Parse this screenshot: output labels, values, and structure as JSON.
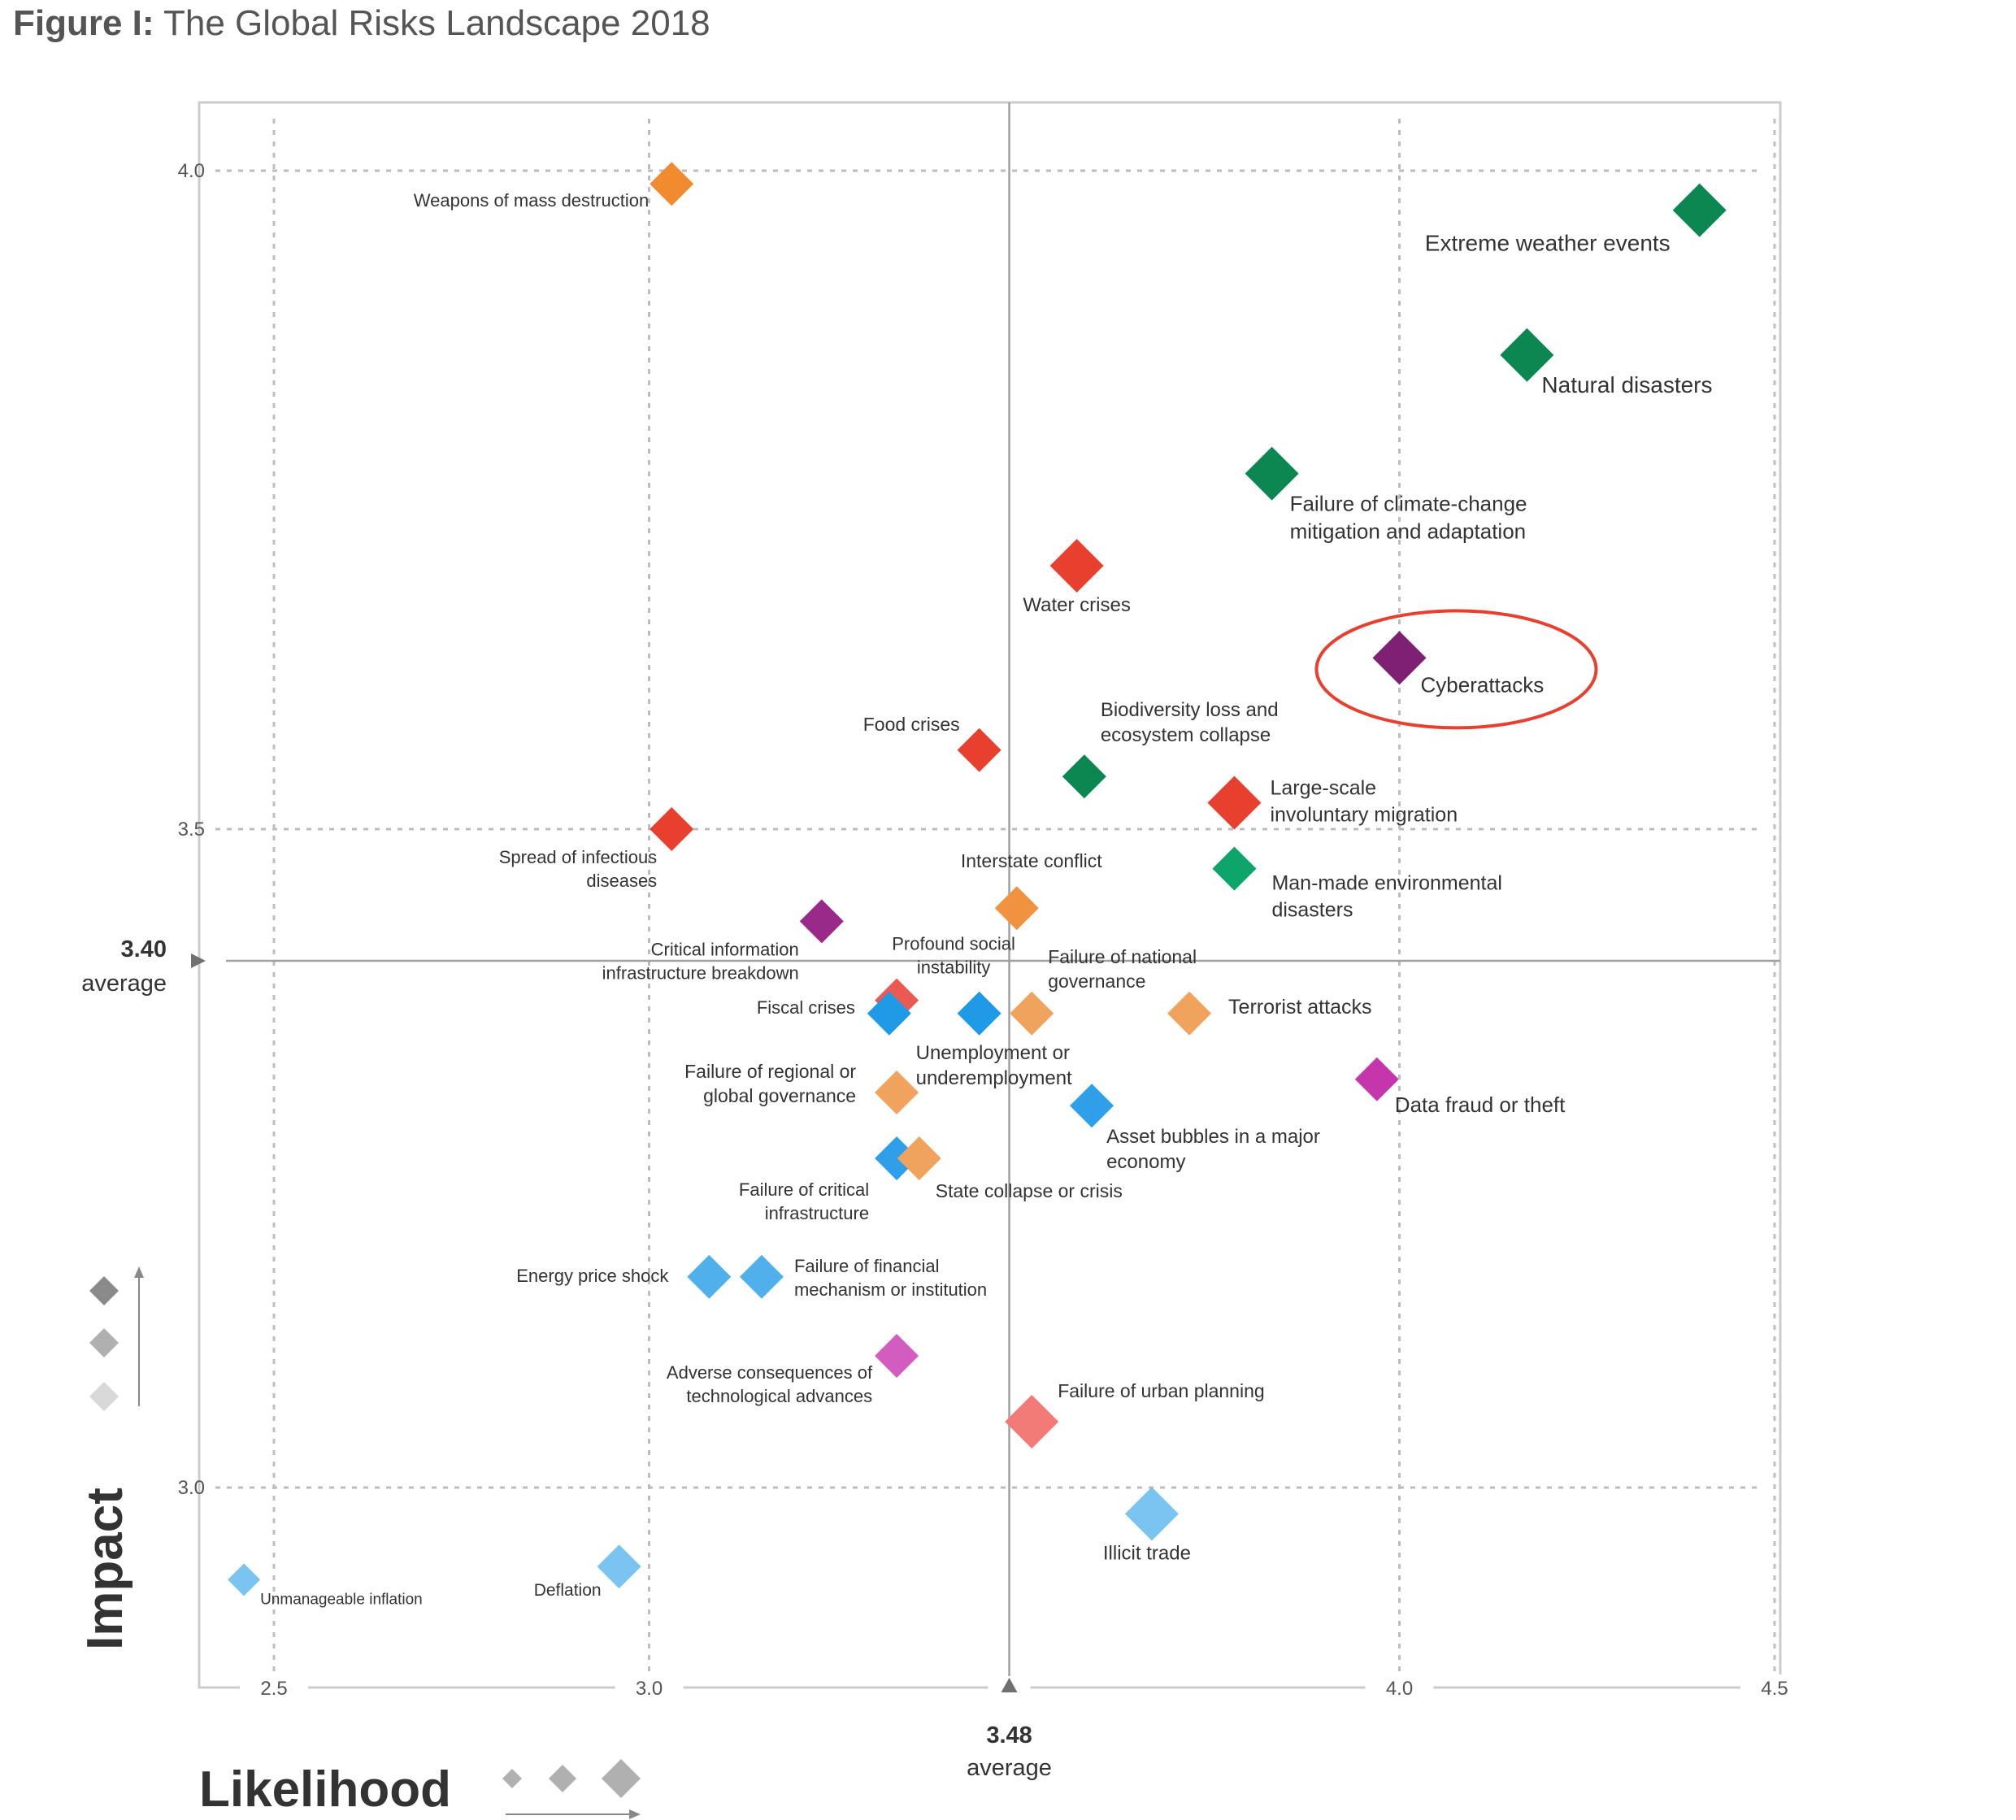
{
  "title": {
    "prefix": "Figure I:",
    "text": "The Global Risks Landscape 2018"
  },
  "chart_data": {
    "type": "scatter",
    "title": "The Global Risks Landscape 2018",
    "xlabel": "Likelihood",
    "ylabel": "Impact",
    "xlim": [
      2.4,
      4.5
    ],
    "ylim": [
      2.85,
      4.05
    ],
    "x_ticks": [
      "2.5",
      "3.0",
      "4.0",
      "4.5"
    ],
    "y_ticks": [
      "3.0",
      "3.5",
      "4.0"
    ],
    "average": {
      "x_value": 3.48,
      "x_label": "3.48",
      "x_caption": "average",
      "y_value": 3.4,
      "y_label": "3.40",
      "y_caption": "average"
    },
    "points": [
      {
        "label": "Weapons of mass destruction",
        "x": 3.03,
        "y": 3.99,
        "color": "#f28b30",
        "size": 2,
        "lines": [
          "Weapons of mass destruction"
        ],
        "anchor": "end",
        "dx": -28,
        "dy": 28,
        "fs": 22
      },
      {
        "label": "Extreme weather events",
        "x": 4.4,
        "y": 3.97,
        "color": "#0c8752",
        "size": 3,
        "lines": [
          "Extreme weather events"
        ],
        "anchor": "end",
        "dx": -36,
        "dy": 50,
        "fs": 28
      },
      {
        "label": "Natural disasters",
        "x": 4.17,
        "y": 3.86,
        "color": "#0c8752",
        "size": 3,
        "lines": [
          "Natural disasters"
        ],
        "anchor": "start",
        "dx": 18,
        "dy": 46,
        "fs": 28
      },
      {
        "label": "Failure of climate-change mitigation and adaptation",
        "x": 3.83,
        "y": 3.77,
        "color": "#0c8752",
        "size": 3,
        "lines": [
          "Failure of climate-change",
          "mitigation and adaptation"
        ],
        "anchor": "start",
        "dx": 22,
        "dy": 46,
        "fs": 26
      },
      {
        "label": "Water crises",
        "x": 3.57,
        "y": 3.7,
        "color": "#e8402f",
        "size": 3,
        "lines": [
          "Water crises"
        ],
        "anchor": "middle",
        "dx": 0,
        "dy": 56,
        "fs": 24
      },
      {
        "label": "Cyberattacks",
        "x": 4.0,
        "y": 3.63,
        "color": "#7e2073",
        "size": 3,
        "lines": [
          "Cyberattacks"
        ],
        "anchor": "start",
        "dx": 26,
        "dy": 42,
        "fs": 26
      },
      {
        "label": "Food crises",
        "x": 3.44,
        "y": 3.56,
        "color": "#e8402f",
        "size": 2,
        "lines": [
          "Food crises"
        ],
        "anchor": "end",
        "dx": -24,
        "dy": -24,
        "fs": 23
      },
      {
        "label": "Biodiversity loss and ecosystem collapse",
        "x": 3.58,
        "y": 3.54,
        "color": "#0c8752",
        "size": 2,
        "lines": [
          "Biodiversity loss and",
          "ecosystem collapse"
        ],
        "anchor": "start",
        "dx": 20,
        "dy": -74,
        "fs": 24
      },
      {
        "label": "Large-scale involuntary migration",
        "x": 3.78,
        "y": 3.52,
        "color": "#e8402f",
        "size": 3,
        "lines": [
          "Large-scale",
          "involuntary migration"
        ],
        "anchor": "start",
        "dx": 44,
        "dy": -10,
        "fs": 25
      },
      {
        "label": "Spread of infectious diseases",
        "x": 3.03,
        "y": 3.5,
        "color": "#e8402f",
        "size": 2,
        "lines": [
          "Spread of infectious",
          "diseases"
        ],
        "anchor": "end",
        "dx": -18,
        "dy": 42,
        "fs": 22
      },
      {
        "label": "Man-made environmental disasters",
        "x": 3.78,
        "y": 3.47,
        "color": "#0da56a",
        "size": 2,
        "lines": [
          "Man-made environmental",
          "disasters"
        ],
        "anchor": "start",
        "dx": 46,
        "dy": 26,
        "fs": 25
      },
      {
        "label": "Interstate conflict",
        "x": 3.49,
        "y": 3.44,
        "color": "#f0923f",
        "size": 2,
        "lines": [
          "Interstate conflict"
        ],
        "anchor": "middle",
        "dx": 18,
        "dy": -50,
        "fs": 23
      },
      {
        "label": "Critical information infrastructure breakdown",
        "x": 3.23,
        "y": 3.43,
        "color": "#9a2a8a",
        "size": 2,
        "lines": [
          "Critical information",
          "infrastructure breakdown"
        ],
        "anchor": "end",
        "dx": -28,
        "dy": 42,
        "fs": 22
      },
      {
        "label": "Profound social instability",
        "x": 3.33,
        "y": 3.37,
        "color": "#ea5a52",
        "size": 2,
        "lines": [
          "Profound social",
          "instability"
        ],
        "anchor": "middle",
        "dx": 70,
        "dy": -62,
        "fs": 22
      },
      {
        "label": "Fiscal crises",
        "x": 3.32,
        "y": 3.36,
        "color": "#1f9ae6",
        "size": 2,
        "lines": [
          "Fiscal crises"
        ],
        "anchor": "end",
        "dx": -42,
        "dy": 0,
        "fs": 22
      },
      {
        "label": "Unemployment or underemployment",
        "x": 3.44,
        "y": 3.36,
        "color": "#1f9ae6",
        "size": 2,
        "lines": [
          "Unemployment or",
          "underemployment"
        ],
        "anchor": "start",
        "dx": -78,
        "dy": 56,
        "fs": 24
      },
      {
        "label": "Failure of national governance",
        "x": 3.51,
        "y": 3.36,
        "color": "#f0a35d",
        "size": 2,
        "lines": [
          "Failure of national",
          "governance"
        ],
        "anchor": "start",
        "dx": 20,
        "dy": -62,
        "fs": 23
      },
      {
        "label": "Terrorist attacks",
        "x": 3.72,
        "y": 3.36,
        "color": "#f0a35d",
        "size": 2,
        "lines": [
          "Terrorist attacks"
        ],
        "anchor": "start",
        "dx": 48,
        "dy": 0,
        "fs": 25
      },
      {
        "label": "Data fraud or theft",
        "x": 3.97,
        "y": 3.31,
        "color": "#c536ac",
        "size": 2,
        "lines": [
          "Data fraud or theft"
        ],
        "anchor": "start",
        "dx": 22,
        "dy": 40,
        "fs": 26
      },
      {
        "label": "Failure of regional or global governance",
        "x": 3.33,
        "y": 3.3,
        "color": "#f0a35d",
        "size": 2,
        "lines": [
          "Failure of regional or",
          "global governance"
        ],
        "anchor": "end",
        "dx": -50,
        "dy": -18,
        "fs": 23
      },
      {
        "label": "Asset bubbles in a major economy",
        "x": 3.59,
        "y": 3.29,
        "color": "#2e9fe8",
        "size": 2,
        "lines": [
          "Asset bubbles in a major",
          "economy"
        ],
        "anchor": "start",
        "dx": 18,
        "dy": 46,
        "fs": 24
      },
      {
        "label": "Failure of critical infrastructure",
        "x": 3.33,
        "y": 3.25,
        "color": "#2e9fe8",
        "size": 2,
        "lines": [
          "Failure of critical",
          "infrastructure"
        ],
        "anchor": "end",
        "dx": -34,
        "dy": 46,
        "fs": 22
      },
      {
        "label": "State collapse or crisis",
        "x": 3.36,
        "y": 3.25,
        "color": "#f0a35d",
        "size": 2,
        "lines": [
          "State collapse or crisis"
        ],
        "anchor": "start",
        "dx": 20,
        "dy": 48,
        "fs": 23
      },
      {
        "label": "Energy price shock",
        "x": 3.08,
        "y": 3.16,
        "color": "#4fb0ec",
        "size": 2,
        "lines": [
          "Energy price shock"
        ],
        "anchor": "end",
        "dx": -50,
        "dy": 6,
        "fs": 22
      },
      {
        "label": "Failure of financial mechanism or institution",
        "x": 3.15,
        "y": 3.16,
        "color": "#4fb0ec",
        "size": 2,
        "lines": [
          "Failure of financial",
          "mechanism or institution"
        ],
        "anchor": "start",
        "dx": 40,
        "dy": -6,
        "fs": 22
      },
      {
        "label": "Adverse consequences of technological advances",
        "x": 3.33,
        "y": 3.1,
        "color": "#d25cc0",
        "size": 2,
        "lines": [
          "Adverse consequences of",
          "technological advances"
        ],
        "anchor": "end",
        "dx": -30,
        "dy": 28,
        "fs": 22
      },
      {
        "label": "Failure of urban planning",
        "x": 3.51,
        "y": 3.05,
        "color": "#f27a77",
        "size": 3,
        "lines": [
          "Failure of urban planning"
        ],
        "anchor": "start",
        "dx": 32,
        "dy": -30,
        "fs": 23
      },
      {
        "label": "Illicit trade",
        "x": 3.67,
        "y": 2.98,
        "color": "#79c4f0",
        "size": 3,
        "lines": [
          "Illicit trade"
        ],
        "anchor": "middle",
        "dx": -6,
        "dy": 56,
        "fs": 24
      },
      {
        "label": "Unmanageable inflation",
        "x": 2.46,
        "y": 2.93,
        "color": "#79c4f0",
        "size": 1,
        "lines": [
          "Unmanageable inflation"
        ],
        "anchor": "start",
        "dx": 20,
        "dy": 30,
        "fs": 19
      },
      {
        "label": "Deflation",
        "x": 2.96,
        "y": 2.94,
        "color": "#79c4f0",
        "size": 2,
        "lines": [
          "Deflation"
        ],
        "anchor": "end",
        "dx": -22,
        "dy": 36,
        "fs": 21
      }
    ],
    "highlight": {
      "label": "Cyberattacks",
      "color": "#e8402f"
    }
  }
}
